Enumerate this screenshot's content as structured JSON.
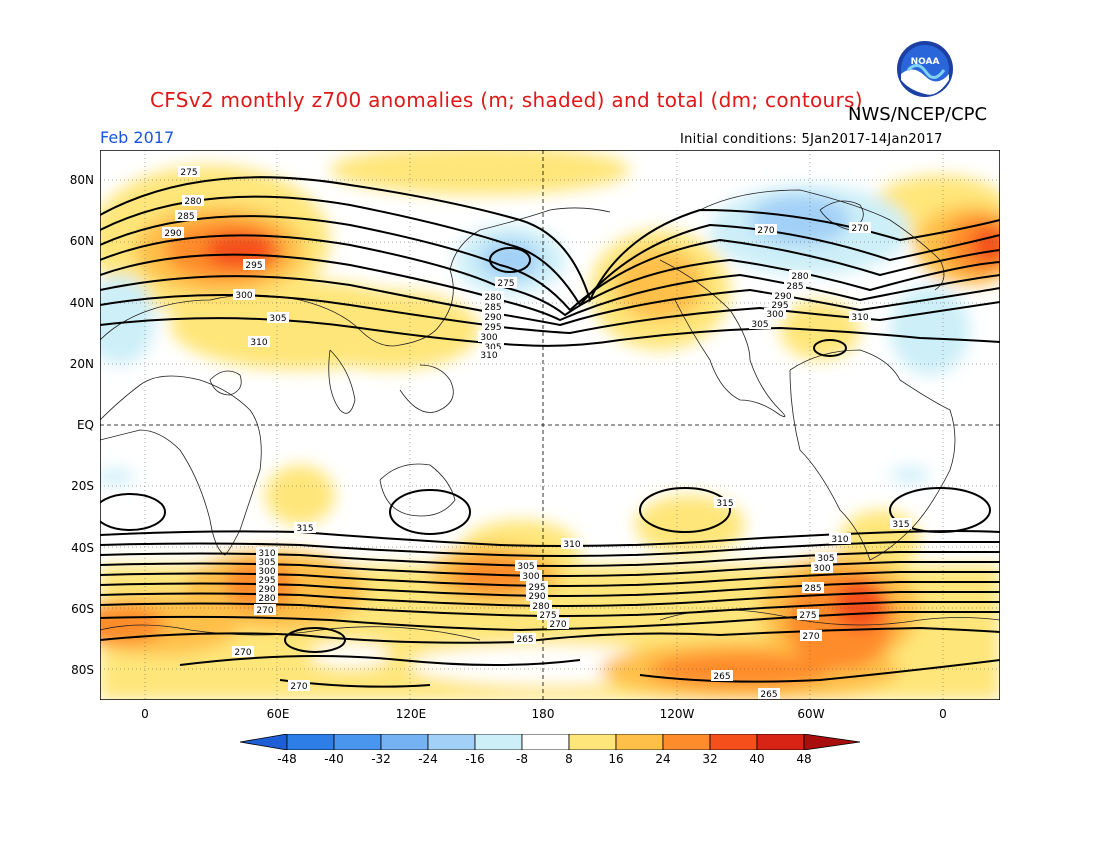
{
  "title": "CFSv2 monthly z700 anomalies (m; shaded) and total (dm; contours)",
  "agency": "NWS/NCEP/CPC",
  "logo_text": "NOAA",
  "month": "Feb 2017",
  "initial_conditions": "Initial conditions: 5Jan2017-14Jan2017",
  "lat_labels": [
    "80N",
    "60N",
    "40N",
    "20N",
    "EQ",
    "20S",
    "40S",
    "60S",
    "80S"
  ],
  "lon_labels": [
    "0",
    "60E",
    "120E",
    "180",
    "120W",
    "60W",
    "0"
  ],
  "colorbar": {
    "labels": [
      "-48",
      "-40",
      "-32",
      "-24",
      "-16",
      "-8",
      "8",
      "16",
      "24",
      "32",
      "40",
      "48"
    ],
    "colors": [
      "#1f5fd6",
      "#2e7ee8",
      "#4a96ef",
      "#74b2f3",
      "#a3d0f7",
      "#cdeff8",
      "#ffffff",
      "#ffe67a",
      "#ffc04a",
      "#ff8c2a",
      "#f5501c",
      "#d82414",
      "#a80e0e"
    ]
  },
  "contour_labels": {
    "north": [
      "275",
      "280",
      "285",
      "290",
      "295",
      "300",
      "305",
      "310"
    ],
    "north_pacific": [
      "275",
      "280",
      "285",
      "290",
      "295",
      "300",
      "305",
      "310"
    ],
    "north_america": [
      "270",
      "275",
      "280",
      "285",
      "290",
      "295",
      "300",
      "305",
      "310"
    ],
    "south": [
      "315",
      "310",
      "305",
      "300",
      "295",
      "290",
      "285",
      "280",
      "275",
      "270",
      "265"
    ]
  }
}
